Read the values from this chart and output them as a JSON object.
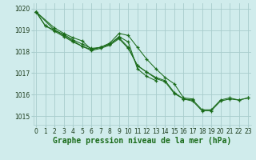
{
  "background_color": "#d0ecec",
  "grid_color": "#a8cccc",
  "line_color": "#1a6b1a",
  "marker_color": "#1a6b1a",
  "xlabel": "Graphe pression niveau de la mer (hPa)",
  "xlabel_fontsize": 7,
  "yticks": [
    1015,
    1016,
    1017,
    1018,
    1019,
    1020
  ],
  "xticks": [
    0,
    1,
    2,
    3,
    4,
    5,
    6,
    7,
    8,
    9,
    10,
    11,
    12,
    13,
    14,
    15,
    16,
    17,
    18,
    19,
    20,
    21,
    22,
    23
  ],
  "xlim": [
    -0.3,
    23.3
  ],
  "ylim": [
    1014.6,
    1020.25
  ],
  "tick_fontsize": 5.5,
  "series": [
    {
      "x": [
        0,
        1,
        2,
        3,
        4,
        5,
        6,
        7,
        8,
        9,
        10,
        11,
        12,
        13,
        14,
        15,
        16,
        17,
        18,
        19,
        20,
        21,
        22,
        23
      ],
      "y": [
        1019.85,
        1019.2,
        1018.95,
        1018.7,
        1018.45,
        1018.25,
        1018.05,
        1018.15,
        1018.3,
        1018.6,
        1018.15,
        1017.35,
        1017.05,
        1016.75,
        1016.6,
        1016.05,
        1015.8,
        1015.7,
        1015.25,
        1015.25,
        1015.7,
        1015.8,
        1015.75,
        1015.85
      ]
    },
    {
      "x": [
        0,
        2,
        3,
        4,
        5,
        6,
        7,
        8,
        9,
        10,
        11,
        12,
        13,
        14,
        15,
        16,
        17
      ],
      "y": [
        1019.85,
        1019.1,
        1018.85,
        1018.65,
        1018.5,
        1018.1,
        1018.2,
        1018.4,
        1018.85,
        1018.75,
        1018.2,
        1017.65,
        1017.2,
        1016.8,
        1016.5,
        1015.85,
        1015.8
      ]
    },
    {
      "x": [
        0,
        1,
        2,
        3,
        4,
        5,
        6,
        7,
        8,
        9,
        10,
        11,
        12,
        13
      ],
      "y": [
        1019.85,
        1019.2,
        1019.0,
        1018.75,
        1018.5,
        1018.25,
        1018.1,
        1018.2,
        1018.35,
        1018.7,
        1018.45,
        1017.2,
        1016.85,
        1016.65
      ]
    },
    {
      "x": [
        0,
        2,
        3,
        4,
        5,
        6,
        7,
        8,
        9,
        10,
        11,
        12,
        13,
        14,
        15,
        16,
        17,
        18,
        19,
        20,
        21,
        22,
        23
      ],
      "y": [
        1019.85,
        1019.0,
        1018.8,
        1018.55,
        1018.35,
        1018.15,
        1018.2,
        1018.35,
        1018.65,
        1018.2,
        1017.35,
        1017.05,
        1016.8,
        1016.65,
        1016.1,
        1015.8,
        1015.75,
        1015.3,
        1015.3,
        1015.75,
        1015.85,
        1015.75,
        1015.85
      ]
    }
  ]
}
